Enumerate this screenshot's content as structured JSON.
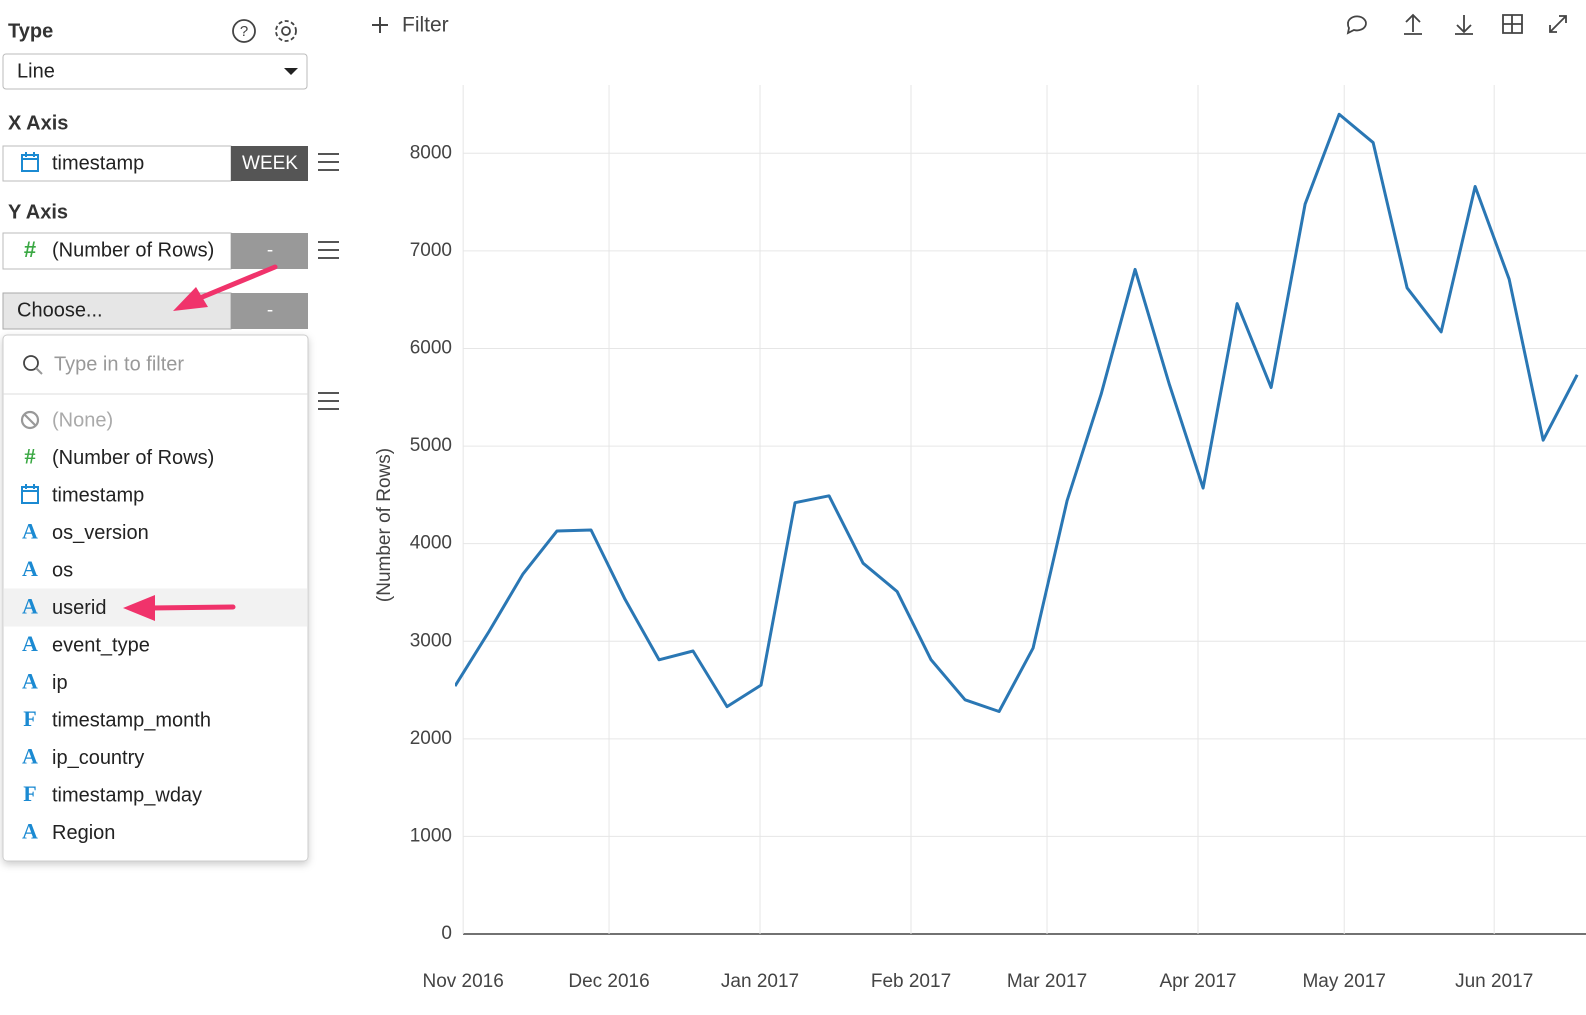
{
  "toolbar": {
    "filter": "Filter"
  },
  "sidebar": {
    "type_label": "Type",
    "type_value": "Line",
    "x_axis_label": "X Axis",
    "x_field": "timestamp",
    "x_unit": "WEEK",
    "y_axis_label": "Y Axis",
    "y_field": "(Number of Rows)",
    "y_agg": "-",
    "choose": "Choose...",
    "choose_agg": "-",
    "filter_placeholder": "Type in to filter",
    "options": [
      {
        "kind": "none",
        "label": "(None)"
      },
      {
        "icon": "#",
        "label": "(Number of Rows)"
      },
      {
        "kind": "date",
        "label": "timestamp"
      },
      {
        "icon": "A",
        "label": "os_version"
      },
      {
        "icon": "A",
        "label": "os"
      },
      {
        "icon": "A",
        "label": "userid",
        "highlighted": true
      },
      {
        "icon": "A",
        "label": "event_type"
      },
      {
        "icon": "A",
        "label": "ip"
      },
      {
        "icon": "F",
        "label": "timestamp_month"
      },
      {
        "icon": "A",
        "label": "ip_country"
      },
      {
        "icon": "F",
        "label": "timestamp_wday"
      },
      {
        "icon": "A",
        "label": "Region"
      }
    ]
  },
  "chart_data": {
    "type": "line",
    "y_label": "(Number of Rows)",
    "categories": [
      null,
      null,
      null,
      null,
      null,
      null,
      null,
      null,
      null,
      null,
      null,
      null,
      null,
      null,
      null,
      null,
      null,
      null,
      null,
      null,
      null,
      null,
      null,
      null,
      null,
      null,
      null,
      null,
      null,
      null,
      null,
      null,
      null,
      null
    ],
    "series": [
      {
        "name": "(Number of Rows)",
        "color": "#2a77b4",
        "values": [
          2540,
          3100,
          3690,
          4130,
          4140,
          3430,
          2810,
          2900,
          2330,
          2550,
          4420,
          4490,
          3800,
          3510,
          2810,
          2400,
          2280,
          2930,
          4440,
          5530,
          6810,
          5640,
          4570,
          6460,
          5600,
          7480,
          8400,
          8110,
          6620,
          6170,
          7660,
          6710,
          5060,
          5730
        ]
      }
    ],
    "xlim": [
      0,
      33.26
    ],
    "xticks": [
      {
        "value": 0.24,
        "label": "Nov 2016"
      },
      {
        "value": 4.53,
        "label": "Dec 2016"
      },
      {
        "value": 8.97,
        "label": "Jan 2017"
      },
      {
        "value": 13.41,
        "label": "Feb 2017"
      },
      {
        "value": 17.41,
        "label": "Mar 2017"
      },
      {
        "value": 21.85,
        "label": "Apr 2017"
      },
      {
        "value": 26.15,
        "label": "May 2017"
      },
      {
        "value": 30.56,
        "label": "Jun 2017"
      }
    ],
    "ylim": [
      0,
      8700
    ],
    "yticks": [
      0,
      1000,
      2000,
      3000,
      4000,
      5000,
      6000,
      7000,
      8000
    ],
    "grid": true
  }
}
